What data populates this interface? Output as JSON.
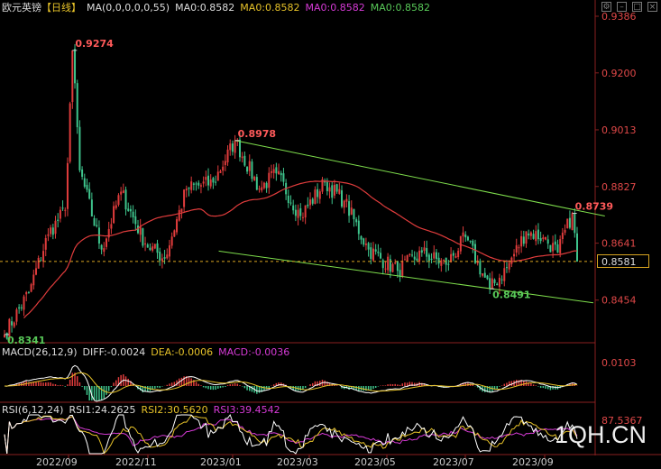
{
  "header": {
    "symbol": "欧元英镑",
    "period": "【日线】",
    "ma_label": "MA(0,0,0,0,0,55)",
    "ma_values": [
      "MA0:0.8582",
      "MA0:0.8582",
      "MA0:0.8582",
      "MA0:0.8582"
    ],
    "ma_colors": [
      "#dddddd",
      "#e6c229",
      "#d63ad6",
      "#58c958"
    ]
  },
  "window_icons": [
    "settings-icon",
    "minimize-icon",
    "maximize-icon",
    "close-icon"
  ],
  "macd_header": {
    "name": "MACD(26,12,9)",
    "diff": "DIFF:-0.0024",
    "dea": "DEA:-0.0006",
    "macd": "MACD:-0.0036"
  },
  "rsi_header": {
    "name": "RSI(6,12,24)",
    "rsi1": "RSI1:24.2625",
    "rsi2": "RSI2:30.5620",
    "rsi3": "RSI3:39.4542"
  },
  "current_price": "0.8581",
  "watermark": "1QH.CN",
  "colors": {
    "up": "#e03c3c",
    "down": "#3ec48c",
    "ma55": "#e03c3c",
    "channel": "#7ede4c",
    "price_line": "#d9a520",
    "axis_text": "#e04848",
    "diff": "#ffffff",
    "dea": "#e6c229",
    "rsi1": "#ffffff",
    "rsi2": "#e6c229",
    "rsi3": "#d63ad6"
  },
  "chart_data": [
    {
      "type": "candlestick",
      "title": "欧元英镑【日线】",
      "y_ticks": [
        "0.9386",
        "0.9200",
        "0.9013",
        "0.8827",
        "0.8641",
        "0.8454"
      ],
      "ylim": [
        0.832,
        0.9386
      ],
      "x_ticks": [
        "2022/09",
        "2022/11",
        "2023/01",
        "2023/03",
        "2023/05",
        "2023/07",
        "2023/09"
      ],
      "annotations": [
        {
          "text": "0.9274",
          "price": 0.9274
        },
        {
          "text": "0.8978",
          "price": 0.8978
        },
        {
          "text": "0.8739",
          "price": 0.8739
        },
        {
          "text": "0.8491",
          "price": 0.8491
        },
        {
          "text": "0.8341",
          "price": 0.8341
        }
      ],
      "anchors": [
        {
          "i": 0,
          "p": 0.8341
        },
        {
          "i": 10,
          "p": 0.848
        },
        {
          "i": 18,
          "p": 0.867
        },
        {
          "i": 25,
          "p": 0.875
        },
        {
          "i": 28,
          "p": 0.9274
        },
        {
          "i": 31,
          "p": 0.888
        },
        {
          "i": 40,
          "p": 0.862
        },
        {
          "i": 48,
          "p": 0.881
        },
        {
          "i": 58,
          "p": 0.864
        },
        {
          "i": 66,
          "p": 0.859
        },
        {
          "i": 75,
          "p": 0.882
        },
        {
          "i": 86,
          "p": 0.884
        },
        {
          "i": 95,
          "p": 0.8978
        },
        {
          "i": 105,
          "p": 0.882
        },
        {
          "i": 112,
          "p": 0.887
        },
        {
          "i": 122,
          "p": 0.873
        },
        {
          "i": 132,
          "p": 0.884
        },
        {
          "i": 140,
          "p": 0.878
        },
        {
          "i": 150,
          "p": 0.862
        },
        {
          "i": 162,
          "p": 0.855
        },
        {
          "i": 172,
          "p": 0.861
        },
        {
          "i": 182,
          "p": 0.857
        },
        {
          "i": 190,
          "p": 0.866
        },
        {
          "i": 200,
          "p": 0.8491
        },
        {
          "i": 207,
          "p": 0.856
        },
        {
          "i": 215,
          "p": 0.868
        },
        {
          "i": 222,
          "p": 0.866
        },
        {
          "i": 228,
          "p": 0.861
        },
        {
          "i": 234,
          "p": 0.8739
        },
        {
          "i": 236,
          "p": 0.8581
        }
      ],
      "channel_upper": [
        [
          95,
          0.8978
        ],
        [
          240,
          0.873
        ]
      ],
      "channel_lower": [
        [
          92,
          0.8615
        ],
        [
          236,
          0.8445
        ]
      ]
    },
    {
      "type": "bar",
      "title": "MACD(26,12,9)",
      "y_ticks": [
        "0.0103"
      ],
      "series": [
        {
          "name": "DIFF",
          "last": -0.0024
        },
        {
          "name": "DEA",
          "last": -0.0006
        },
        {
          "name": "MACD",
          "last": -0.0036
        }
      ]
    },
    {
      "type": "line",
      "title": "RSI(6,12,24)",
      "y_ticks": [
        "87.5367"
      ],
      "series": [
        {
          "name": "RSI1",
          "last": 24.2625
        },
        {
          "name": "RSI2",
          "last": 30.562
        },
        {
          "name": "RSI3",
          "last": 39.4542
        }
      ]
    }
  ]
}
